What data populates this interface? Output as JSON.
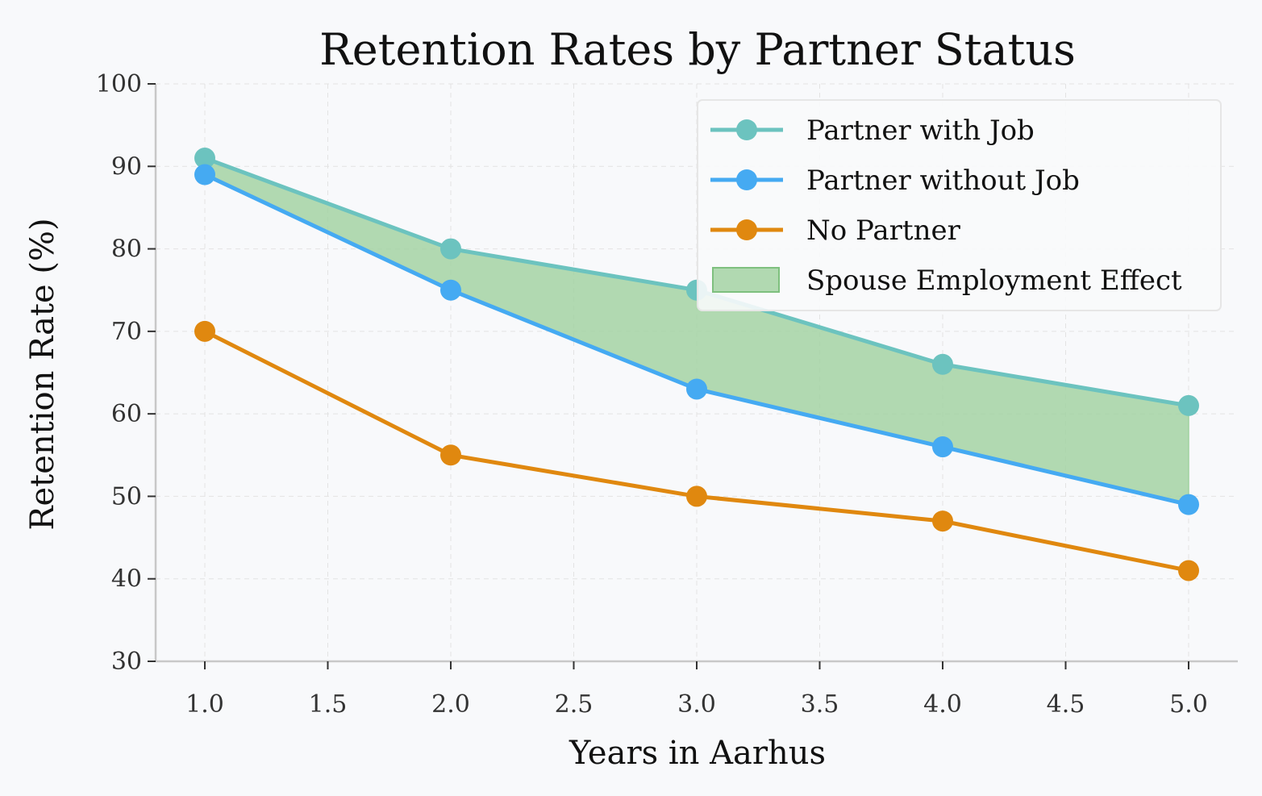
{
  "chart_data": {
    "type": "line",
    "title": "Retention Rates by Partner Status",
    "xlabel": "Years in Aarhus",
    "ylabel": "Retention Rate (%)",
    "x": [
      1,
      2,
      3,
      4,
      5
    ],
    "xlim": [
      0.8,
      5.2
    ],
    "ylim": [
      30,
      100
    ],
    "xticks": [
      "1.0",
      "1.5",
      "2.0",
      "2.5",
      "3.0",
      "3.5",
      "4.0",
      "4.5",
      "5.0"
    ],
    "yticks": [
      "30",
      "40",
      "50",
      "60",
      "70",
      "80",
      "90",
      "100"
    ],
    "grid": true,
    "legend_position": "top-right",
    "series": [
      {
        "name": "Partner with Job",
        "values": [
          91,
          80,
          75,
          66,
          61
        ],
        "color": "#6cc3bf"
      },
      {
        "name": "Partner without Job",
        "values": [
          89,
          75,
          63,
          56,
          49
        ],
        "color": "#45aaf2"
      },
      {
        "name": "No Partner",
        "values": [
          70,
          55,
          50,
          47,
          41
        ],
        "color": "#e0880f"
      }
    ],
    "fill_between": {
      "name": "Spouse Employment Effect",
      "upper": "Partner with Job",
      "lower": "Partner without Job",
      "color": "#9fd19f"
    }
  }
}
